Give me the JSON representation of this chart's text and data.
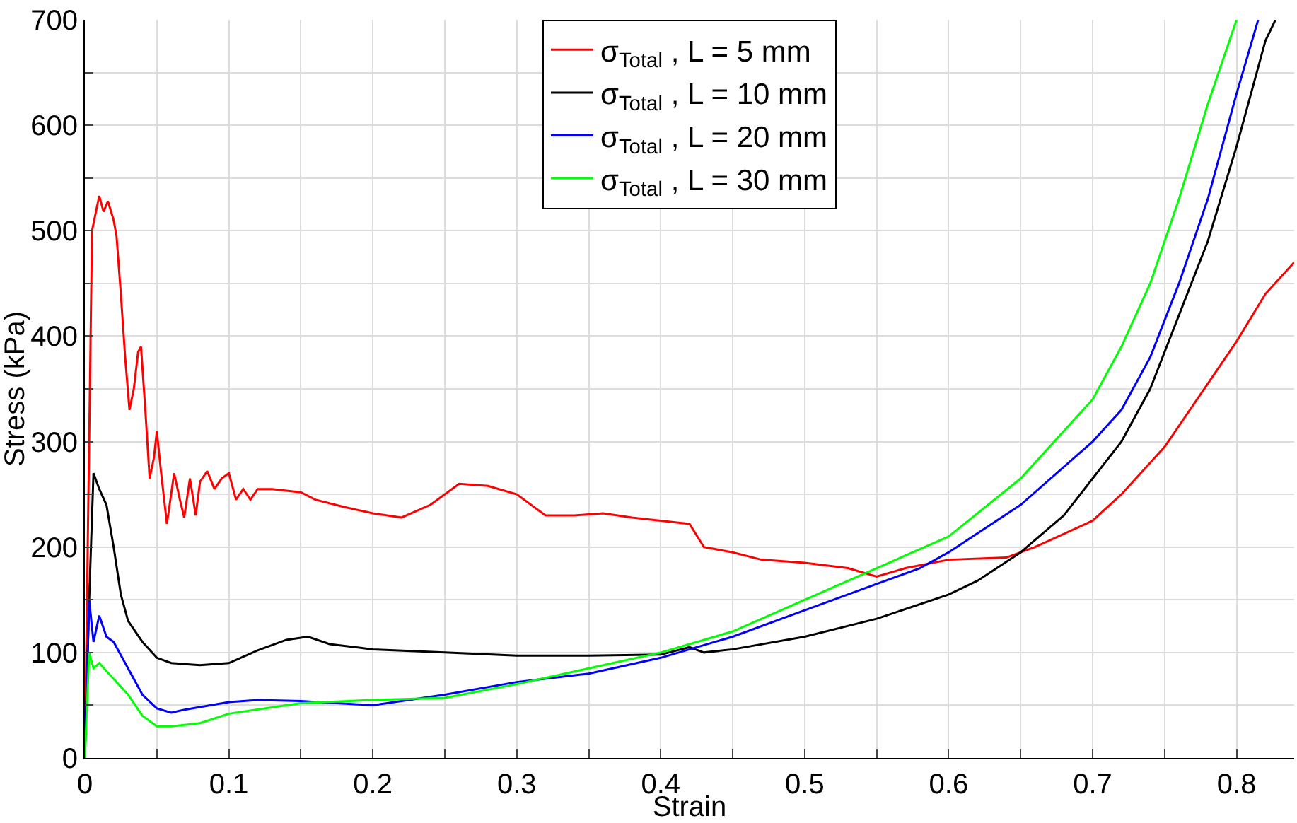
{
  "chart_data": {
    "type": "line",
    "xlabel": "Strain",
    "ylabel": "Stress (kPa)",
    "xlim": [
      0,
      0.84
    ],
    "ylim": [
      0,
      700
    ],
    "xticks": [
      0,
      {
        "value": 0.05,
        "label": null
      },
      0.1,
      {
        "value": 0.15,
        "label": null
      },
      0.2,
      {
        "value": 0.25,
        "label": null
      },
      0.3,
      {
        "value": 0.35,
        "label": null
      },
      0.4,
      {
        "value": 0.45,
        "label": null
      },
      0.5,
      {
        "value": 0.55,
        "label": null
      },
      0.6,
      {
        "value": 0.65,
        "label": null
      },
      0.7,
      {
        "value": 0.75,
        "label": null
      },
      0.8
    ],
    "yticks": [
      0,
      {
        "value": 50,
        "label": null
      },
      100,
      {
        "value": 150,
        "label": null
      },
      200,
      {
        "value": 250,
        "label": null
      },
      300,
      {
        "value": 350,
        "label": null
      },
      400,
      {
        "value": 450,
        "label": null
      },
      500,
      {
        "value": 550,
        "label": null
      },
      600,
      {
        "value": 650,
        "label": null
      },
      700
    ],
    "grid": true,
    "legend": "top",
    "marker": "none",
    "line_style": "solid",
    "series": [
      {
        "name": "σ$_{Total}$ , L = 5 mm",
        "color": "#ff0000",
        "x": [
          0,
          0.003,
          0.005,
          0.008,
          0.01,
          0.013,
          0.016,
          0.02,
          0.022,
          0.025,
          0.028,
          0.031,
          0.034,
          0.037,
          0.039,
          0.042,
          0.045,
          0.048,
          0.05,
          0.053,
          0.057,
          0.062,
          0.066,
          0.069,
          0.073,
          0.077,
          0.08,
          0.085,
          0.09,
          0.095,
          0.1,
          0.105,
          0.11,
          0.115,
          0.12,
          0.13,
          0.15,
          0.16,
          0.18,
          0.2,
          0.22,
          0.24,
          0.26,
          0.28,
          0.3,
          0.32,
          0.34,
          0.36,
          0.38,
          0.4,
          0.42,
          0.43,
          0.45,
          0.47,
          0.5,
          0.53,
          0.55,
          0.57,
          0.6,
          0.64,
          0.66,
          0.7,
          0.72,
          0.75,
          0.78,
          0.8,
          0.82,
          0.84
        ],
        "values": [
          0,
          300,
          500,
          520,
          533,
          518,
          528,
          510,
          495,
          440,
          380,
          330,
          350,
          385,
          390,
          330,
          265,
          285,
          310,
          270,
          222,
          270,
          245,
          228,
          265,
          230,
          262,
          272,
          255,
          265,
          270,
          245,
          255,
          245,
          255,
          255,
          252,
          245,
          238,
          232,
          228,
          240,
          260,
          258,
          250,
          230,
          230,
          232,
          228,
          225,
          222,
          200,
          195,
          188,
          185,
          180,
          172,
          180,
          188,
          190,
          200,
          225,
          250,
          295,
          355,
          395,
          440,
          470
        ]
      },
      {
        "name": "σ$_{Total}$ , L = 10 mm",
        "color": "#000000",
        "x": [
          0,
          0.003,
          0.006,
          0.01,
          0.015,
          0.02,
          0.025,
          0.03,
          0.04,
          0.05,
          0.06,
          0.08,
          0.1,
          0.12,
          0.14,
          0.155,
          0.17,
          0.2,
          0.25,
          0.3,
          0.35,
          0.4,
          0.42,
          0.43,
          0.45,
          0.5,
          0.55,
          0.6,
          0.62,
          0.65,
          0.68,
          0.7,
          0.72,
          0.74,
          0.76,
          0.78,
          0.8,
          0.82,
          0.827
        ],
        "values": [
          0,
          150,
          270,
          255,
          240,
          200,
          155,
          130,
          110,
          95,
          90,
          88,
          90,
          102,
          112,
          115,
          108,
          103,
          100,
          97,
          97,
          98,
          105,
          100,
          103,
          115,
          132,
          155,
          168,
          195,
          230,
          265,
          300,
          350,
          420,
          490,
          580,
          680,
          700
        ]
      },
      {
        "name": "σ$_{Total}$ , L = 20 mm",
        "color": "#0000ff",
        "x": [
          0,
          0.003,
          0.006,
          0.01,
          0.015,
          0.02,
          0.03,
          0.04,
          0.05,
          0.06,
          0.07,
          0.1,
          0.12,
          0.15,
          0.2,
          0.25,
          0.3,
          0.35,
          0.4,
          0.45,
          0.5,
          0.55,
          0.58,
          0.6,
          0.65,
          0.7,
          0.72,
          0.74,
          0.76,
          0.78,
          0.8,
          0.815
        ],
        "values": [
          0,
          150,
          110,
          135,
          115,
          110,
          85,
          60,
          47,
          43,
          46,
          53,
          55,
          54,
          50,
          60,
          72,
          80,
          95,
          115,
          140,
          165,
          180,
          195,
          240,
          300,
          330,
          380,
          450,
          530,
          630,
          700
        ]
      },
      {
        "name": "σ$_{Total}$ , L = 30 mm",
        "color": "#00ff00",
        "x": [
          0,
          0.003,
          0.006,
          0.01,
          0.02,
          0.03,
          0.04,
          0.05,
          0.06,
          0.08,
          0.1,
          0.15,
          0.2,
          0.25,
          0.3,
          0.35,
          0.4,
          0.45,
          0.5,
          0.55,
          0.6,
          0.65,
          0.7,
          0.72,
          0.74,
          0.76,
          0.78,
          0.8
        ],
        "values": [
          0,
          100,
          85,
          90,
          75,
          60,
          40,
          30,
          30,
          33,
          42,
          52,
          55,
          57,
          70,
          85,
          100,
          120,
          150,
          180,
          210,
          265,
          340,
          390,
          450,
          530,
          620,
          700
        ]
      }
    ]
  }
}
